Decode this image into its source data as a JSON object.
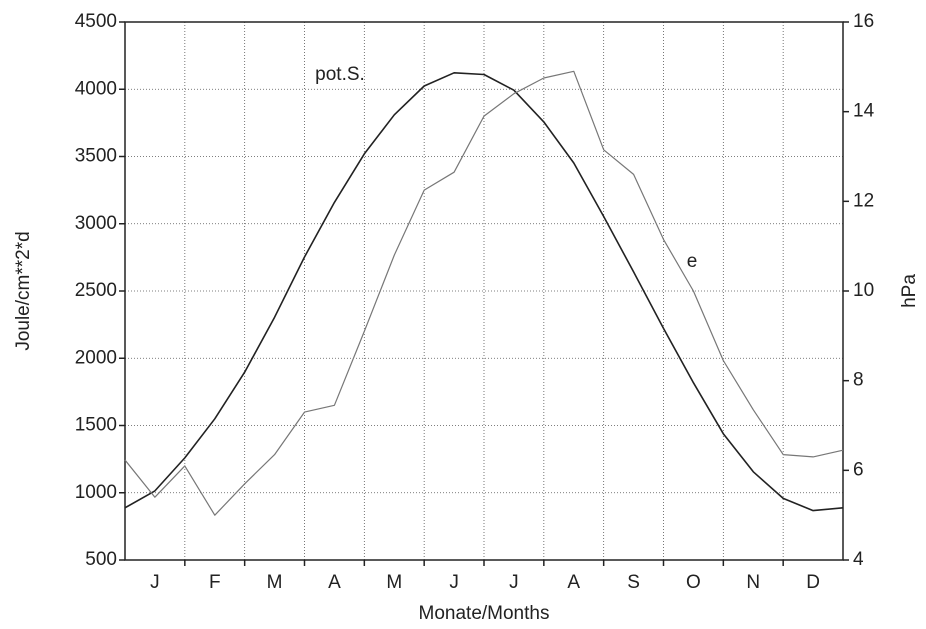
{
  "chart_data": {
    "type": "line",
    "xlabel": "Monate/Months",
    "ylabel": "Joule/cm**2*d",
    "y2label": "hPa",
    "categories": [
      null,
      "J",
      null,
      "F",
      null,
      "M",
      null,
      "A",
      null,
      "M",
      null,
      "J",
      null,
      "J",
      null,
      "A",
      null,
      "S",
      null,
      "O",
      null,
      "N",
      null,
      "D",
      null
    ],
    "series": [
      {
        "name": "pot.S.",
        "color": "#222222",
        "values": [
          888,
          1014,
          1259,
          1550,
          1897,
          2305,
          2753,
          3159,
          3519,
          3810,
          4024,
          4122,
          4110,
          3993,
          3757,
          3452,
          3054,
          2642,
          2222,
          1818,
          1439,
          1156,
          958,
          867,
          888
        ]
      },
      {
        "name": "e",
        "color": "#777777",
        "axis": "y2",
        "values": [
          6.23,
          5.4,
          6.1,
          5.0,
          5.7,
          6.35,
          7.3,
          7.45,
          9.1,
          10.8,
          12.25,
          12.65,
          13.9,
          14.4,
          14.75,
          14.9,
          13.15,
          12.6,
          11.15,
          10.0,
          8.45,
          7.35,
          6.35,
          6.3,
          6.45
        ]
      }
    ],
    "ylim": [
      500,
      4500
    ],
    "yticks": [
      500,
      1000,
      1500,
      2000,
      2500,
      3000,
      3500,
      4000,
      4500
    ],
    "y2lim": [
      4,
      16
    ],
    "y2ticks": [
      4,
      6,
      8,
      10,
      12,
      14,
      16
    ],
    "grid": true
  }
}
